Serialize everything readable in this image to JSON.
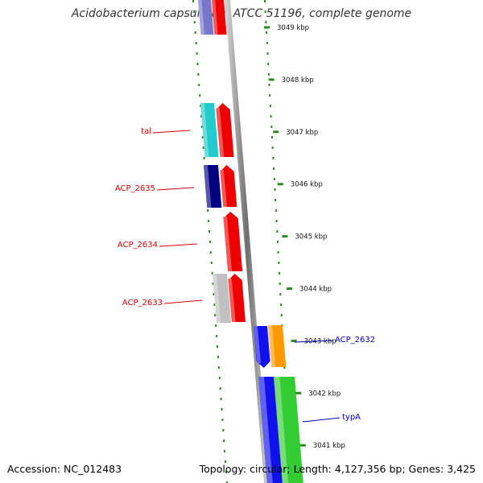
{
  "title": "Acidobacterium capsulatum ATCC 51196, complete genome",
  "footer": {
    "accession": "Accession: NC_012483",
    "stats": "Topology: circular; Length: 4,127,356 bp; Genes: 3,425"
  },
  "ticks": [
    {
      "label": "3049 kbp"
    },
    {
      "label": "3048 kbp"
    },
    {
      "label": "3047 kbp"
    },
    {
      "label": "3046 kbp"
    },
    {
      "label": "3045 kbp"
    },
    {
      "label": "3044 kbp"
    },
    {
      "label": "3043 kbp"
    },
    {
      "label": "3042 kbp"
    },
    {
      "label": "3041 kbp"
    }
  ],
  "gene_labels": [
    {
      "text": "tal",
      "color": "#d40000"
    },
    {
      "text": "ACP_2635",
      "color": "#d40000"
    },
    {
      "text": "ACP_2634",
      "color": "#d40000"
    },
    {
      "text": "ACP_2633",
      "color": "#d40000"
    },
    {
      "text": "ACP_2632",
      "color": "#0000b4"
    },
    {
      "text": "typA",
      "color": "#0000b4"
    }
  ],
  "colors": {
    "ticks": "#2e8b22",
    "forward_strand": "#ee0000",
    "tal_cog": "#22cccc",
    "acp2635_cog": "#000080",
    "acp2633_cog": "#c0c0c0",
    "acp2632_cog": "#1111ee",
    "acp2632_strand": "#ff9900",
    "typA_cog": "#1111ee",
    "typA_strand": "#33cc33"
  }
}
